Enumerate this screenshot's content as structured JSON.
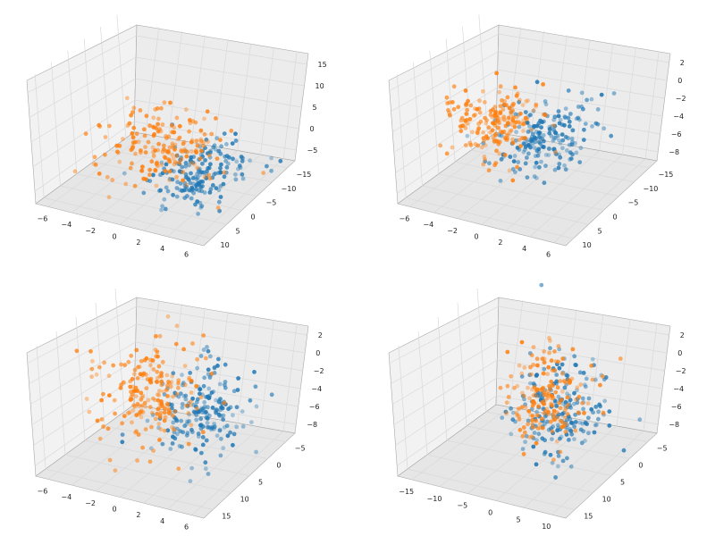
{
  "figure": {
    "colors": {
      "series_a": "#1f77b4",
      "series_b": "#ff7f0e",
      "pane": "#f2f2f2",
      "grid": "#d9d9d9",
      "edge": "#a8a8a8"
    }
  },
  "chart_data": [
    {
      "type": "scatter",
      "title": "",
      "xlabel": "",
      "ylabel": "",
      "zlabel": "",
      "xticks": [
        "−6",
        "−4",
        "−2",
        "0",
        "2",
        "4",
        "6"
      ],
      "yticks": [
        "−15",
        "−10",
        "−5",
        "0",
        "5",
        "10"
      ],
      "zticks": [
        "−5",
        "0",
        "5",
        "10",
        "15"
      ],
      "xlim": [
        -7,
        7
      ],
      "ylim": [
        -15,
        13
      ],
      "zlim": [
        -7,
        18
      ],
      "grid": true,
      "series": [
        {
          "color": "#1f77b4",
          "clusters": [
            {
              "x": [
                0.5,
                6.5
              ],
              "y": [
                -10,
                10
              ],
              "z": [
                -6,
                4
              ],
              "n": 180
            }
          ]
        },
        {
          "color": "#ff7f0e",
          "clusters": [
            {
              "x": [
                -6.5,
                4.5
              ],
              "y": [
                -12,
                8
              ],
              "z": [
                -5,
                8
              ],
              "n": 180
            }
          ]
        }
      ]
    },
    {
      "type": "scatter",
      "title": "",
      "xlabel": "",
      "ylabel": "",
      "zlabel": "",
      "xticks": [
        "−6",
        "−4",
        "−2",
        "0",
        "2",
        "4",
        "6"
      ],
      "yticks": [
        "−15",
        "−10",
        "−5",
        "0",
        "5",
        "10"
      ],
      "zticks": [
        "−8",
        "−6",
        "−4",
        "−2",
        "0",
        "2"
      ],
      "xlim": [
        -7,
        7
      ],
      "ylim": [
        -15,
        13
      ],
      "zlim": [
        -9,
        3
      ],
      "grid": true,
      "series": [
        {
          "color": "#1f77b4",
          "clusters": [
            {
              "x": [
                -1,
                6
              ],
              "y": [
                -8,
                10
              ],
              "z": [
                -5,
                1
              ],
              "n": 200
            }
          ]
        },
        {
          "color": "#ff7f0e",
          "clusters": [
            {
              "x": [
                -6,
                1
              ],
              "y": [
                -8,
                8
              ],
              "z": [
                -6,
                1
              ],
              "n": 180
            }
          ]
        }
      ]
    },
    {
      "type": "scatter",
      "title": "",
      "xlabel": "",
      "ylabel": "",
      "zlabel": "",
      "xticks": [
        "−6",
        "−4",
        "−2",
        "0",
        "2",
        "4",
        "6"
      ],
      "yticks": [
        "−5",
        "0",
        "5",
        "10",
        "15"
      ],
      "zticks": [
        "−8",
        "−6",
        "−4",
        "−2",
        "0",
        "2"
      ],
      "xlim": [
        -7,
        7
      ],
      "ylim": [
        -7,
        18
      ],
      "zlim": [
        -9,
        3
      ],
      "grid": true,
      "series": [
        {
          "color": "#1f77b4",
          "clusters": [
            {
              "x": [
                -1,
                6
              ],
              "y": [
                -5,
                12
              ],
              "z": [
                -8,
                1
              ],
              "n": 200
            }
          ]
        },
        {
          "color": "#ff7f0e",
          "clusters": [
            {
              "x": [
                -6,
                2
              ],
              "y": [
                -5,
                12
              ],
              "z": [
                -8,
                2
              ],
              "n": 200
            }
          ]
        }
      ]
    },
    {
      "type": "scatter",
      "title": "",
      "xlabel": "",
      "ylabel": "",
      "zlabel": "",
      "xticks": [
        "−15",
        "−10",
        "−5",
        "0",
        "5",
        "10"
      ],
      "yticks": [
        "−5",
        "0",
        "5",
        "10",
        "15"
      ],
      "zticks": [
        "−8",
        "−6",
        "−4",
        "−2",
        "0",
        "2"
      ],
      "xlim": [
        -16,
        13
      ],
      "ylim": [
        -7,
        18
      ],
      "zlim": [
        -9,
        3
      ],
      "grid": true,
      "series": [
        {
          "color": "#1f77b4",
          "clusters": [
            {
              "x": [
                -5,
                10
              ],
              "y": [
                -5,
                10
              ],
              "z": [
                -9,
                2
              ],
              "n": 200
            }
          ]
        },
        {
          "color": "#ff7f0e",
          "clusters": [
            {
              "x": [
                -6,
                5
              ],
              "y": [
                -5,
                8
              ],
              "z": [
                -8,
                2
              ],
              "n": 170
            }
          ]
        }
      ]
    }
  ]
}
